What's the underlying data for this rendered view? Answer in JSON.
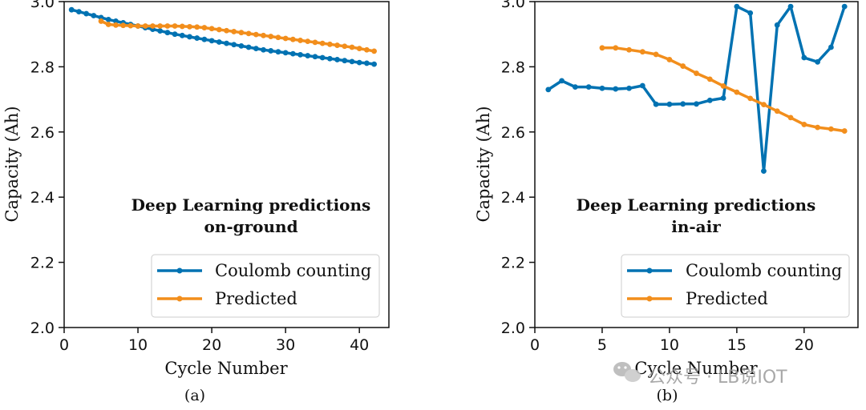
{
  "colors": {
    "coulomb": "#0072b2",
    "predicted": "#f28e1c"
  },
  "watermark": {
    "text": "公众号 · LB说IOT",
    "icon": "wechat-icon"
  },
  "chart_data": [
    {
      "type": "line",
      "panel_label": "(a)",
      "xlabel": "Cycle Number",
      "ylabel": "Capacity (Ah)",
      "xlim": [
        0,
        44
      ],
      "ylim": [
        2.0,
        3.0
      ],
      "xticks": [
        0,
        10,
        20,
        30,
        40
      ],
      "yticks": [
        2.0,
        2.2,
        2.4,
        2.6,
        2.8,
        3.0
      ],
      "annotation": [
        "Deep Learning predictions",
        "on-ground"
      ],
      "legend": [
        "Coulomb counting",
        "Predicted"
      ],
      "series": [
        {
          "name": "Coulomb counting",
          "color_key": "coulomb",
          "x": [
            1,
            2,
            3,
            4,
            5,
            6,
            7,
            8,
            9,
            10,
            11,
            12,
            13,
            14,
            15,
            16,
            17,
            18,
            19,
            20,
            21,
            22,
            23,
            24,
            25,
            26,
            27,
            28,
            29,
            30,
            31,
            32,
            33,
            34,
            35,
            36,
            37,
            38,
            39,
            40,
            41,
            42
          ],
          "y": [
            2.975,
            2.969,
            2.963,
            2.957,
            2.951,
            2.945,
            2.94,
            2.935,
            2.93,
            2.925,
            2.92,
            2.915,
            2.91,
            2.905,
            2.9,
            2.896,
            2.892,
            2.888,
            2.884,
            2.88,
            2.876,
            2.872,
            2.868,
            2.864,
            2.86,
            2.856,
            2.852,
            2.849,
            2.846,
            2.843,
            2.84,
            2.837,
            2.834,
            2.831,
            2.828,
            2.825,
            2.822,
            2.819,
            2.816,
            2.813,
            2.811,
            2.808
          ]
        },
        {
          "name": "Predicted",
          "color_key": "predicted",
          "x": [
            5,
            6,
            7,
            8,
            9,
            10,
            11,
            12,
            13,
            14,
            15,
            16,
            17,
            18,
            19,
            20,
            21,
            22,
            23,
            24,
            25,
            26,
            27,
            28,
            29,
            30,
            31,
            32,
            33,
            34,
            35,
            36,
            37,
            38,
            39,
            40,
            41,
            42
          ],
          "y": [
            2.94,
            2.93,
            2.928,
            2.927,
            2.926,
            2.925,
            2.925,
            2.925,
            2.925,
            2.925,
            2.925,
            2.924,
            2.923,
            2.922,
            2.92,
            2.917,
            2.914,
            2.911,
            2.908,
            2.905,
            2.902,
            2.899,
            2.896,
            2.893,
            2.89,
            2.887,
            2.884,
            2.881,
            2.878,
            2.875,
            2.872,
            2.869,
            2.866,
            2.863,
            2.86,
            2.856,
            2.852,
            2.848
          ]
        }
      ]
    },
    {
      "type": "line",
      "panel_label": "(b)",
      "xlabel": "Cycle Number",
      "ylabel": "Capacity (Ah)",
      "xlim": [
        0,
        24
      ],
      "ylim": [
        2.0,
        3.0
      ],
      "xticks": [
        0,
        5,
        10,
        15,
        20
      ],
      "yticks": [
        2.0,
        2.2,
        2.4,
        2.6,
        2.8,
        3.0
      ],
      "annotation": [
        "Deep Learning predictions",
        "in-air"
      ],
      "legend": [
        "Coulomb counting",
        "Predicted"
      ],
      "series": [
        {
          "name": "Coulomb counting",
          "color_key": "coulomb",
          "x": [
            1,
            2,
            3,
            4,
            5,
            6,
            7,
            8,
            9,
            10,
            11,
            12,
            13,
            14,
            15,
            16,
            17,
            18,
            19,
            20,
            21,
            22,
            23
          ],
          "y": [
            2.73,
            2.757,
            2.738,
            2.738,
            2.734,
            2.732,
            2.734,
            2.742,
            2.685,
            2.685,
            2.686,
            2.686,
            2.697,
            2.704,
            2.985,
            2.965,
            2.48,
            2.928,
            2.985,
            2.828,
            2.815,
            2.86,
            2.985
          ]
        },
        {
          "name": "Predicted",
          "color_key": "predicted",
          "x": [
            5,
            6,
            7,
            8,
            9,
            10,
            11,
            12,
            13,
            14,
            15,
            16,
            17,
            18,
            19,
            20,
            21,
            22,
            23
          ],
          "y": [
            2.858,
            2.858,
            2.852,
            2.846,
            2.838,
            2.822,
            2.802,
            2.78,
            2.762,
            2.741,
            2.722,
            2.703,
            2.684,
            2.664,
            2.644,
            2.623,
            2.614,
            2.609,
            2.603
          ]
        }
      ]
    }
  ]
}
